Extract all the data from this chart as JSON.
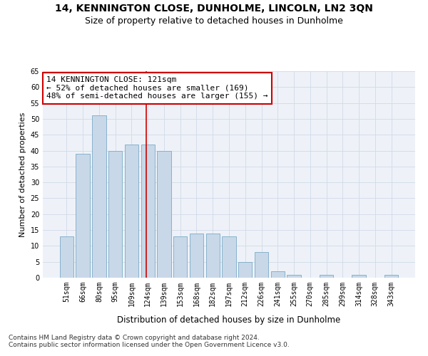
{
  "title": "14, KENNINGTON CLOSE, DUNHOLME, LINCOLN, LN2 3QN",
  "subtitle": "Size of property relative to detached houses in Dunholme",
  "xlabel": "Distribution of detached houses by size in Dunholme",
  "ylabel": "Number of detached properties",
  "categories": [
    "51sqm",
    "66sqm",
    "80sqm",
    "95sqm",
    "109sqm",
    "124sqm",
    "139sqm",
    "153sqm",
    "168sqm",
    "182sqm",
    "197sqm",
    "212sqm",
    "226sqm",
    "241sqm",
    "255sqm",
    "270sqm",
    "285sqm",
    "299sqm",
    "314sqm",
    "328sqm",
    "343sqm"
  ],
  "values": [
    13,
    39,
    51,
    40,
    42,
    42,
    40,
    13,
    14,
    14,
    13,
    5,
    8,
    2,
    1,
    0,
    1,
    0,
    1,
    0,
    1
  ],
  "bar_color": "#c8d8e8",
  "bar_edge_color": "#7aaac8",
  "grid_color": "#d0dae8",
  "background_color": "#eef2f8",
  "vline_color": "#cc0000",
  "annotation_text": "14 KENNINGTON CLOSE: 121sqm\n← 52% of detached houses are smaller (169)\n48% of semi-detached houses are larger (155) →",
  "annotation_box_color": "#ffffff",
  "annotation_box_edge": "#cc0000",
  "ylim": [
    0,
    65
  ],
  "yticks": [
    0,
    5,
    10,
    15,
    20,
    25,
    30,
    35,
    40,
    45,
    50,
    55,
    60,
    65
  ],
  "footer_line1": "Contains HM Land Registry data © Crown copyright and database right 2024.",
  "footer_line2": "Contains public sector information licensed under the Open Government Licence v3.0.",
  "title_fontsize": 10,
  "subtitle_fontsize": 9,
  "xlabel_fontsize": 8.5,
  "ylabel_fontsize": 8,
  "tick_fontsize": 7,
  "annotation_fontsize": 8,
  "footer_fontsize": 6.5
}
